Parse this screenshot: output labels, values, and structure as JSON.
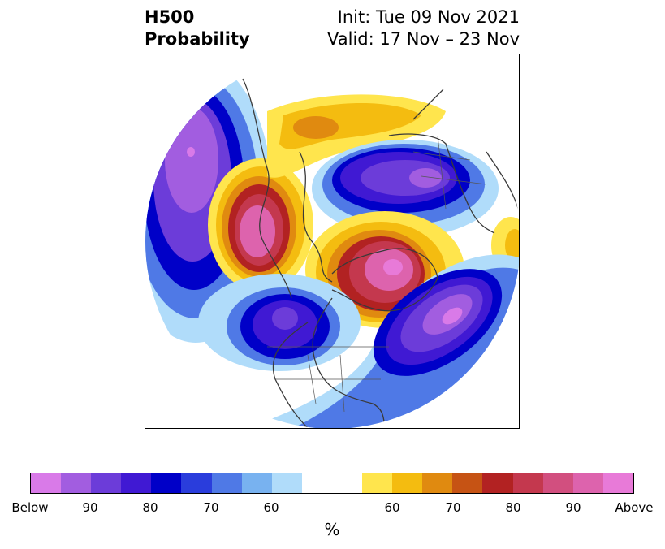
{
  "title": {
    "left_line1": "H500",
    "left_line2": "Probability",
    "right_line1": "Init: Tue 09 Nov 2021",
    "right_line2": "Valid: 17 Nov – 23 Nov"
  },
  "colorbar": {
    "unit": "%",
    "segment_colors": [
      "#d97ae8",
      "#a25de0",
      "#6c3cd9",
      "#4019d3",
      "#0000c8",
      "#2a3ddc",
      "#4f79e6",
      "#78b2f0",
      "#b0dcfa",
      "#ffffff",
      "#ffffff",
      "#ffe54d",
      "#f4bc10",
      "#e08a10",
      "#c65314",
      "#b22222",
      "#c4384e",
      "#d24f7f",
      "#dd63ad",
      "#e87ad8"
    ],
    "labels": [
      "Below",
      "90",
      "80",
      "70",
      "60",
      "60",
      "70",
      "80",
      "90",
      "Above"
    ]
  },
  "map": {
    "projection": "polar stereographic, north pole",
    "features": [
      "below-normal anomaly west Pacific",
      "above-normal anomaly northeast Pacific",
      "below-normal anomaly Siberia",
      "above-normal anomaly North Pole / Greenland",
      "below-normal anomaly Alaska/Canada",
      "below-normal anomaly North Atlantic",
      "above-normal anomaly Scandinavia"
    ]
  }
}
